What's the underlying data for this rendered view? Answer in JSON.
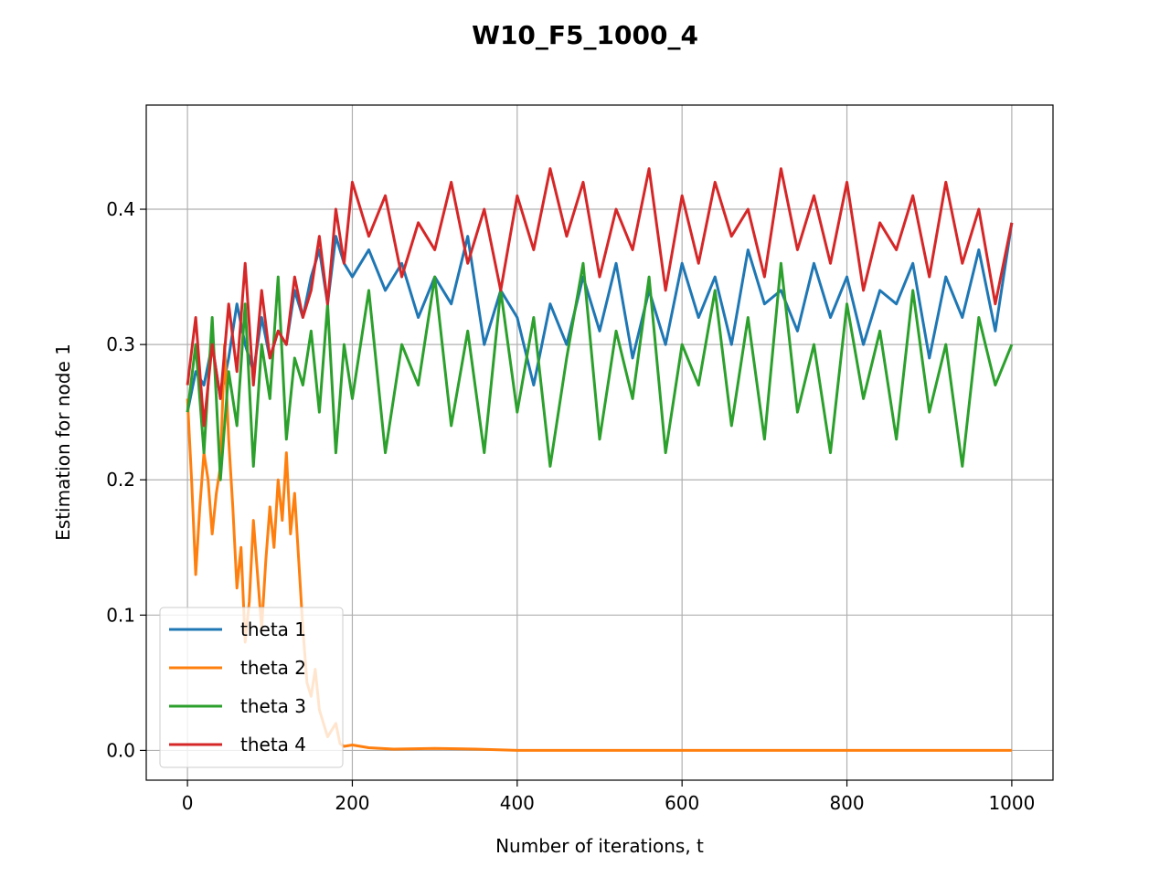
{
  "chart_data": {
    "type": "line",
    "title": "W10_F5_1000_4",
    "xlabel": "Number of iterations, t",
    "ylabel": "Estimation for node 1",
    "xlim": [
      -50,
      1050
    ],
    "ylim": [
      -0.022,
      0.477
    ],
    "xticks": [
      0,
      200,
      400,
      600,
      800,
      1000
    ],
    "yticks": [
      0.0,
      0.1,
      0.2,
      0.3,
      0.4
    ],
    "xtick_labels": [
      "0",
      "200",
      "400",
      "600",
      "800",
      "1000"
    ],
    "ytick_labels": [
      "0.0",
      "0.1",
      "0.2",
      "0.3",
      "0.4"
    ],
    "grid": true,
    "legend_position": "lower-left",
    "series": [
      {
        "name": "theta 1",
        "color": "#1f77b4",
        "x": [
          0,
          10,
          20,
          30,
          40,
          50,
          60,
          70,
          80,
          90,
          100,
          110,
          120,
          130,
          140,
          150,
          160,
          170,
          180,
          190,
          200,
          220,
          240,
          260,
          280,
          300,
          320,
          340,
          360,
          380,
          400,
          420,
          440,
          460,
          480,
          500,
          520,
          540,
          560,
          580,
          600,
          620,
          640,
          660,
          680,
          700,
          720,
          740,
          760,
          780,
          800,
          820,
          840,
          860,
          880,
          900,
          920,
          940,
          960,
          980,
          1000
        ],
        "y": [
          0.25,
          0.28,
          0.27,
          0.3,
          0.26,
          0.29,
          0.33,
          0.3,
          0.28,
          0.32,
          0.29,
          0.31,
          0.3,
          0.34,
          0.32,
          0.35,
          0.37,
          0.33,
          0.38,
          0.36,
          0.35,
          0.37,
          0.34,
          0.36,
          0.32,
          0.35,
          0.33,
          0.38,
          0.3,
          0.34,
          0.32,
          0.27,
          0.33,
          0.3,
          0.35,
          0.31,
          0.36,
          0.29,
          0.34,
          0.3,
          0.36,
          0.32,
          0.35,
          0.3,
          0.37,
          0.33,
          0.34,
          0.31,
          0.36,
          0.32,
          0.35,
          0.3,
          0.34,
          0.33,
          0.36,
          0.29,
          0.35,
          0.32,
          0.37,
          0.31,
          0.39
        ]
      },
      {
        "name": "theta 2",
        "color": "#ff7f0e",
        "x": [
          0,
          5,
          10,
          15,
          20,
          25,
          30,
          35,
          40,
          45,
          50,
          55,
          60,
          65,
          70,
          75,
          80,
          85,
          90,
          95,
          100,
          105,
          110,
          115,
          120,
          125,
          130,
          135,
          140,
          145,
          150,
          155,
          160,
          165,
          170,
          175,
          180,
          185,
          190,
          200,
          220,
          250,
          300,
          350,
          400,
          500,
          600,
          700,
          800,
          900,
          1000
        ],
        "y": [
          0.26,
          0.2,
          0.13,
          0.18,
          0.22,
          0.2,
          0.16,
          0.19,
          0.21,
          0.3,
          0.23,
          0.18,
          0.12,
          0.15,
          0.08,
          0.11,
          0.17,
          0.13,
          0.09,
          0.14,
          0.18,
          0.15,
          0.2,
          0.17,
          0.22,
          0.16,
          0.19,
          0.14,
          0.09,
          0.05,
          0.04,
          0.06,
          0.03,
          0.02,
          0.01,
          0.015,
          0.02,
          0.005,
          0.003,
          0.004,
          0.002,
          0.001,
          0.0015,
          0.001,
          0.0,
          0.0,
          0.0,
          0.0,
          0.0,
          0.0,
          0.0
        ]
      },
      {
        "name": "theta 3",
        "color": "#2ca02c",
        "x": [
          0,
          10,
          20,
          30,
          40,
          50,
          60,
          70,
          80,
          90,
          100,
          110,
          120,
          130,
          140,
          150,
          160,
          170,
          180,
          190,
          200,
          220,
          240,
          260,
          280,
          300,
          320,
          340,
          360,
          380,
          400,
          420,
          440,
          460,
          480,
          500,
          520,
          540,
          560,
          580,
          600,
          620,
          640,
          660,
          680,
          700,
          720,
          740,
          760,
          780,
          800,
          820,
          840,
          860,
          880,
          900,
          920,
          940,
          960,
          980,
          1000
        ],
        "y": [
          0.25,
          0.3,
          0.22,
          0.32,
          0.2,
          0.28,
          0.24,
          0.33,
          0.21,
          0.3,
          0.26,
          0.35,
          0.23,
          0.29,
          0.27,
          0.31,
          0.25,
          0.33,
          0.22,
          0.3,
          0.26,
          0.34,
          0.22,
          0.3,
          0.27,
          0.35,
          0.24,
          0.31,
          0.22,
          0.34,
          0.25,
          0.32,
          0.21,
          0.29,
          0.36,
          0.23,
          0.31,
          0.26,
          0.35,
          0.22,
          0.3,
          0.27,
          0.34,
          0.24,
          0.32,
          0.23,
          0.36,
          0.25,
          0.3,
          0.22,
          0.33,
          0.26,
          0.31,
          0.23,
          0.34,
          0.25,
          0.3,
          0.21,
          0.32,
          0.27,
          0.3
        ]
      },
      {
        "name": "theta 4",
        "color": "#d62728",
        "x": [
          0,
          10,
          20,
          30,
          40,
          50,
          60,
          70,
          80,
          90,
          100,
          110,
          120,
          130,
          140,
          150,
          160,
          170,
          180,
          190,
          200,
          220,
          240,
          260,
          280,
          300,
          320,
          340,
          360,
          380,
          400,
          420,
          440,
          460,
          480,
          500,
          520,
          540,
          560,
          580,
          600,
          620,
          640,
          660,
          680,
          700,
          720,
          740,
          760,
          780,
          800,
          820,
          840,
          860,
          880,
          900,
          920,
          940,
          960,
          980,
          1000
        ],
        "y": [
          0.27,
          0.32,
          0.24,
          0.3,
          0.26,
          0.33,
          0.28,
          0.36,
          0.27,
          0.34,
          0.29,
          0.31,
          0.3,
          0.35,
          0.32,
          0.34,
          0.38,
          0.33,
          0.4,
          0.36,
          0.42,
          0.38,
          0.41,
          0.35,
          0.39,
          0.37,
          0.42,
          0.36,
          0.4,
          0.34,
          0.41,
          0.37,
          0.43,
          0.38,
          0.42,
          0.35,
          0.4,
          0.37,
          0.43,
          0.34,
          0.41,
          0.36,
          0.42,
          0.38,
          0.4,
          0.35,
          0.43,
          0.37,
          0.41,
          0.36,
          0.42,
          0.34,
          0.39,
          0.37,
          0.41,
          0.35,
          0.42,
          0.36,
          0.4,
          0.33,
          0.39
        ]
      }
    ]
  }
}
